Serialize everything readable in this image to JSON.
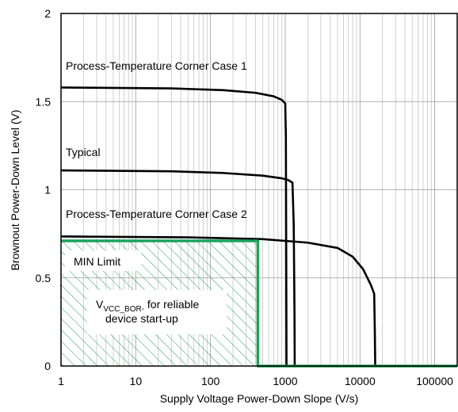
{
  "chart_data": {
    "type": "line",
    "title": "",
    "xlabel": "Supply Voltage Power-Down Slope (V/s)",
    "ylabel": "Brownout Power-Down Level (V)",
    "x_scale": "log",
    "xlim": [
      1,
      200000
    ],
    "ylim": [
      0,
      2
    ],
    "grid": true,
    "x_ticks": [
      1,
      10,
      100,
      1000,
      10000,
      100000
    ],
    "x_tick_labels": [
      "1",
      "10",
      "100",
      "1000",
      "10000",
      "100000"
    ],
    "y_ticks": [
      0,
      0.5,
      1,
      1.5,
      2
    ],
    "y_tick_labels": [
      "0",
      "0.5",
      "1",
      "1.5",
      "2"
    ],
    "series": [
      {
        "name": "Process-Temperature Corner Case 1",
        "color": "#000000",
        "points": [
          [
            1,
            1.58
          ],
          [
            30,
            1.575
          ],
          [
            150,
            1.565
          ],
          [
            400,
            1.55
          ],
          [
            700,
            1.53
          ],
          [
            900,
            1.51
          ],
          [
            1000,
            1.49
          ],
          [
            1020,
            1.3
          ],
          [
            1030,
            0.7
          ],
          [
            1040,
            0
          ]
        ]
      },
      {
        "name": "Typical",
        "color": "#000000",
        "points": [
          [
            1,
            1.11
          ],
          [
            30,
            1.105
          ],
          [
            150,
            1.095
          ],
          [
            500,
            1.08
          ],
          [
            900,
            1.065
          ],
          [
            1100,
            1.055
          ],
          [
            1250,
            1.04
          ],
          [
            1300,
            0.8
          ],
          [
            1330,
            0.3
          ],
          [
            1340,
            0
          ]
        ]
      },
      {
        "name": "Process-Temperature Corner Case 2",
        "color": "#000000",
        "points": [
          [
            1,
            0.735
          ],
          [
            50,
            0.73
          ],
          [
            500,
            0.72
          ],
          [
            2000,
            0.7
          ],
          [
            5000,
            0.67
          ],
          [
            8000,
            0.62
          ],
          [
            11000,
            0.55
          ],
          [
            14000,
            0.46
          ],
          [
            15500,
            0.41
          ],
          [
            15800,
            0.2
          ],
          [
            16000,
            0
          ]
        ]
      },
      {
        "name": "MIN Limit",
        "color": "#1aa35a",
        "points": [
          [
            1,
            0.71
          ],
          [
            430,
            0.71
          ],
          [
            430,
            0
          ],
          [
            200000,
            0
          ]
        ]
      }
    ],
    "shaded_region": {
      "x": [
        1,
        430
      ],
      "y": [
        0,
        0.71
      ],
      "color": "#1aa35a",
      "pattern": "diagonal-hatch"
    },
    "annotations": [
      {
        "id": "case1",
        "text": "Process-Temperature Corner Case 1"
      },
      {
        "id": "typical",
        "text": "Typical"
      },
      {
        "id": "case2",
        "text": "Process-Temperature Corner Case 2"
      },
      {
        "id": "minlimit",
        "text": "MIN Limit"
      },
      {
        "id": "vcc_main",
        "text": "V"
      },
      {
        "id": "vcc_sub",
        "text": "VCC_BOR-"
      },
      {
        "id": "vcc_rest",
        "text": " for reliable"
      },
      {
        "id": "vcc_line2",
        "text": "device start-up"
      }
    ]
  }
}
